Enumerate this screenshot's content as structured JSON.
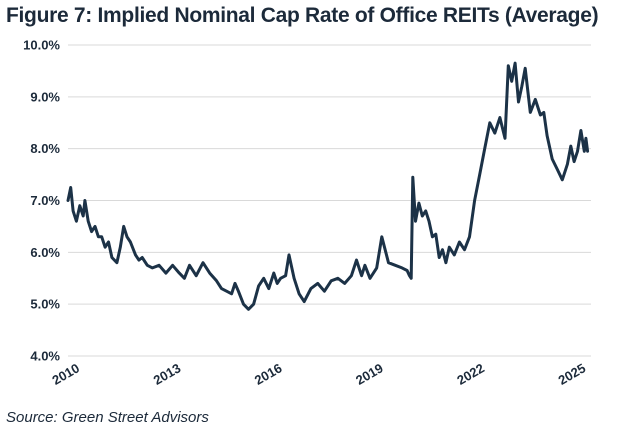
{
  "title": "Figure 7: Implied Nominal Cap Rate of Office REITs (Average)",
  "source": "Source: Green Street Advisors",
  "colors": {
    "line": "#1c3247",
    "grid": "#d9d9d9",
    "text": "#1c2a3a"
  },
  "chart_data": {
    "type": "line",
    "title": "Figure 7: Implied Nominal Cap Rate of Office REITs (Average)",
    "xlabel": "",
    "ylabel": "",
    "xlim": [
      2010,
      2025.5
    ],
    "ylim": [
      4.0,
      10.0
    ],
    "y_ticks": [
      "4.0%",
      "5.0%",
      "6.0%",
      "7.0%",
      "8.0%",
      "9.0%",
      "10.0%"
    ],
    "y_tick_values": [
      4,
      5,
      6,
      7,
      8,
      9,
      10
    ],
    "x_ticks": [
      "2010",
      "2013",
      "2016",
      "2019",
      "2022",
      "2025"
    ],
    "x_tick_values": [
      2010,
      2013,
      2016,
      2019,
      2022,
      2025
    ],
    "grid": "horizontal",
    "legend": "none",
    "series": [
      {
        "x": [
          2010.0,
          2010.08,
          2010.15,
          2010.25,
          2010.35,
          2010.45,
          2010.5,
          2010.6,
          2010.7,
          2010.8,
          2010.9,
          2011.0,
          2011.1,
          2011.2,
          2011.3,
          2011.45,
          2011.55,
          2011.65,
          2011.75,
          2011.85,
          2012.0,
          2012.1,
          2012.2,
          2012.35,
          2012.5,
          2012.7,
          2012.9,
          2013.1,
          2013.3,
          2013.45,
          2013.6,
          2013.8,
          2014.0,
          2014.2,
          2014.4,
          2014.55,
          2014.7,
          2014.85,
          2014.95,
          2015.05,
          2015.2,
          2015.35,
          2015.5,
          2015.65,
          2015.8,
          2015.95,
          2016.1,
          2016.2,
          2016.3,
          2016.45,
          2016.55,
          2016.7,
          2016.85,
          2017.0,
          2017.2,
          2017.4,
          2017.6,
          2017.8,
          2018.0,
          2018.2,
          2018.4,
          2018.55,
          2018.7,
          2018.8,
          2018.95,
          2019.05,
          2019.15,
          2019.3,
          2019.5,
          2019.7,
          2019.9,
          2020.05,
          2020.12,
          2020.17,
          2020.22,
          2020.3,
          2020.4,
          2020.5,
          2020.6,
          2020.7,
          2020.8,
          2020.9,
          2021.0,
          2021.1,
          2021.2,
          2021.3,
          2021.45,
          2021.6,
          2021.75,
          2021.9,
          2022.05,
          2022.2,
          2022.35,
          2022.5,
          2022.65,
          2022.8,
          2022.95,
          2023.05,
          2023.15,
          2023.25,
          2023.35,
          2023.45,
          2023.55,
          2023.7,
          2023.85,
          2024.0,
          2024.1,
          2024.2,
          2024.35,
          2024.5,
          2024.65,
          2024.8,
          2024.9,
          2025.0,
          2025.1,
          2025.2,
          2025.3,
          2025.35,
          2025.4
        ],
        "y": [
          7.0,
          7.25,
          6.8,
          6.6,
          6.9,
          6.7,
          7.0,
          6.6,
          6.4,
          6.5,
          6.3,
          6.3,
          6.1,
          6.2,
          5.9,
          5.8,
          6.1,
          6.5,
          6.3,
          6.2,
          5.95,
          5.85,
          5.9,
          5.75,
          5.7,
          5.75,
          5.6,
          5.75,
          5.6,
          5.5,
          5.75,
          5.55,
          5.8,
          5.6,
          5.45,
          5.3,
          5.25,
          5.2,
          5.4,
          5.25,
          5.0,
          4.9,
          5.0,
          5.35,
          5.5,
          5.3,
          5.6,
          5.4,
          5.5,
          5.55,
          5.95,
          5.5,
          5.2,
          5.05,
          5.3,
          5.4,
          5.25,
          5.45,
          5.5,
          5.4,
          5.55,
          5.85,
          5.55,
          5.75,
          5.5,
          5.6,
          5.7,
          6.3,
          5.8,
          5.75,
          5.7,
          5.65,
          5.55,
          5.5,
          7.45,
          6.6,
          6.95,
          6.7,
          6.8,
          6.6,
          6.3,
          6.35,
          5.9,
          6.05,
          5.8,
          6.1,
          5.95,
          6.2,
          6.05,
          6.3,
          7.0,
          7.5,
          8.0,
          8.5,
          8.3,
          8.6,
          8.2,
          9.6,
          9.3,
          9.65,
          8.9,
          9.2,
          9.55,
          8.7,
          8.95,
          8.65,
          8.7,
          8.25,
          7.8,
          7.6,
          7.4,
          7.7,
          8.05,
          7.75,
          7.95,
          8.35,
          7.95,
          8.2,
          7.95
        ]
      }
    ]
  }
}
